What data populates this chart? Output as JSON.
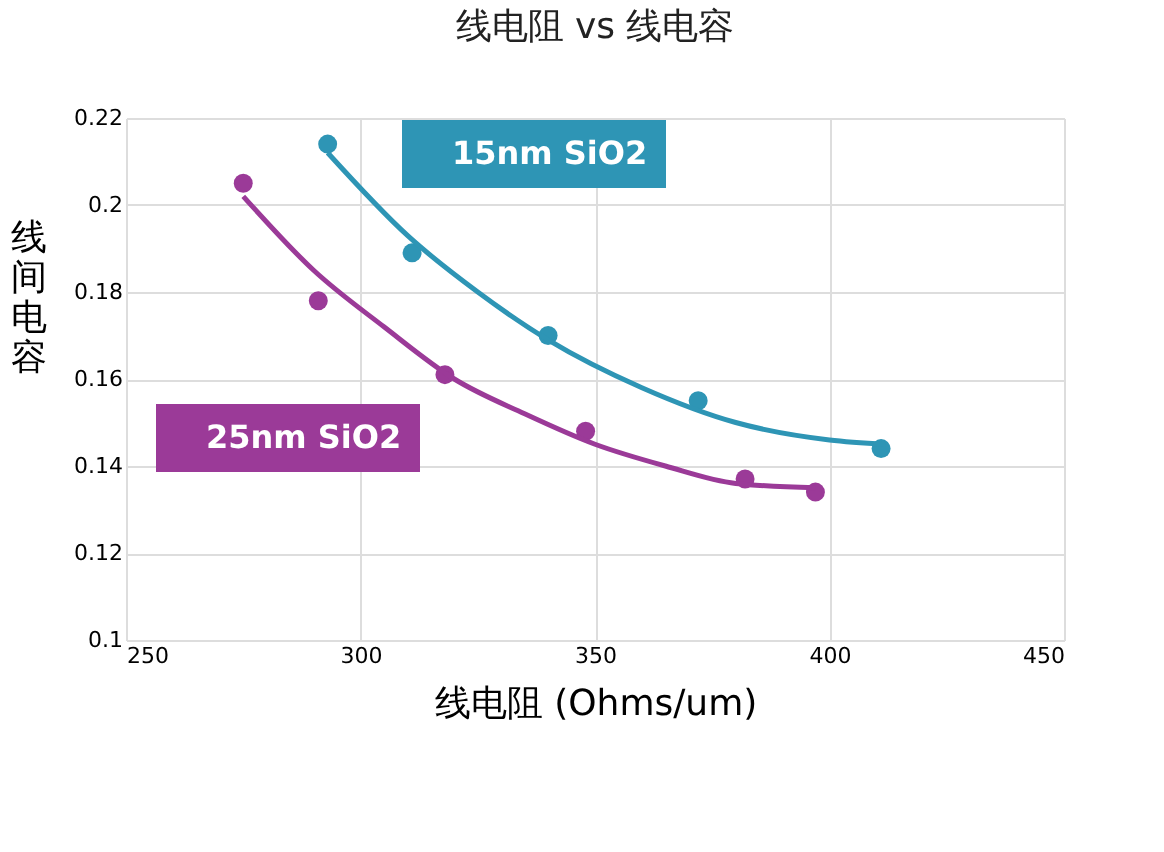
{
  "chart_data": {
    "type": "scatter",
    "title": "线电阻 vs 线电容",
    "xlabel": "线电阻  (Ohms/um)",
    "ylabel": "线间电容",
    "xlim": [
      250,
      450
    ],
    "xticks": [
      250,
      300,
      350,
      400,
      450
    ],
    "ylim": [
      0.1,
      0.22
    ],
    "yticks": [
      0.1,
      0.12,
      0.14,
      0.16,
      0.18,
      0.2,
      0.22
    ],
    "grid": true,
    "legend": "top",
    "marker": "circle",
    "series": [
      {
        "name": "15nm SiO2",
        "color": "#2e95b5",
        "x": [
          293,
          311,
          340,
          372,
          411
        ],
        "values": [
          0.214,
          0.189,
          0.17,
          0.155,
          0.144
        ]
      },
      {
        "name": "25nm SiO2",
        "color": "#9b3a98",
        "x": [
          275,
          291,
          318,
          348,
          382,
          397
        ],
        "values": [
          0.205,
          0.178,
          0.161,
          0.148,
          0.137,
          0.134
        ]
      },
      {
        "type": "line",
        "marker": "none",
        "color": "#2e95b5",
        "x": [
          293,
          310,
          325,
          340,
          360,
          380,
          400,
          412
        ],
        "values": [
          0.212,
          0.193,
          0.18,
          0.169,
          0.158,
          0.15,
          0.146,
          0.145
        ]
      },
      {
        "type": "line",
        "marker": "none",
        "color": "#9b3a98",
        "x": [
          275,
          290,
          305,
          320,
          335,
          350,
          365,
          380,
          397
        ],
        "values": [
          0.202,
          0.185,
          0.172,
          0.16,
          0.152,
          0.145,
          0.14,
          0.136,
          0.135
        ]
      }
    ]
  }
}
